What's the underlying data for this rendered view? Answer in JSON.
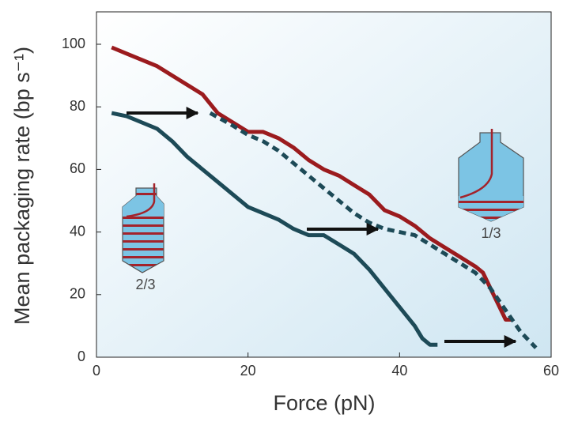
{
  "chart_data": {
    "type": "line",
    "xlabel": "Force (pN)",
    "ylabel": "Mean packaging rate (bp s⁻¹)",
    "xlim": [
      0,
      60
    ],
    "ylim": [
      0,
      100
    ],
    "xticks": [
      0,
      20,
      40,
      60
    ],
    "yticks": [
      0,
      20,
      40,
      60,
      80,
      100
    ],
    "series": [
      {
        "color": "#9b1b1e",
        "style": "solid",
        "x": [
          2,
          4,
          6,
          8,
          10,
          12,
          14,
          16,
          18,
          20,
          22,
          24,
          26,
          28,
          30,
          32,
          34,
          36,
          38,
          40,
          42,
          44,
          46,
          48,
          50,
          51,
          52,
          53,
          54,
          55
        ],
        "values": [
          99,
          97,
          95,
          93,
          90,
          87,
          84,
          78,
          75,
          72,
          72,
          70,
          67,
          63,
          60,
          58,
          55,
          52,
          47,
          45,
          42,
          38,
          35,
          32,
          29,
          27,
          22,
          17,
          12,
          12
        ]
      },
      {
        "color": "#1d4a57",
        "style": "solid",
        "x": [
          2,
          4,
          6,
          8,
          10,
          12,
          14,
          16,
          18,
          20,
          22,
          24,
          26,
          28,
          30,
          32,
          34,
          36,
          38,
          40,
          42,
          43,
          44,
          45
        ],
        "values": [
          78,
          77,
          75,
          73,
          69,
          64,
          60,
          56,
          52,
          48,
          46,
          44,
          41,
          39,
          39,
          36,
          33,
          28,
          22,
          16,
          10,
          6,
          4,
          4
        ]
      },
      {
        "color": "#1d4a57",
        "style": "dashed",
        "x": [
          15,
          18,
          20,
          22,
          24,
          26,
          28,
          30,
          32,
          34,
          36,
          38,
          40,
          42,
          44,
          46,
          48,
          50,
          52,
          54,
          56,
          58
        ],
        "values": [
          78,
          74,
          71,
          69,
          66,
          62,
          58,
          54,
          50,
          46,
          43,
          41,
          40,
          39,
          36,
          33,
          30,
          27,
          22,
          15,
          8,
          3
        ]
      }
    ],
    "annotations": [
      {
        "text": "2/3"
      },
      {
        "text": "1/3"
      }
    ]
  }
}
